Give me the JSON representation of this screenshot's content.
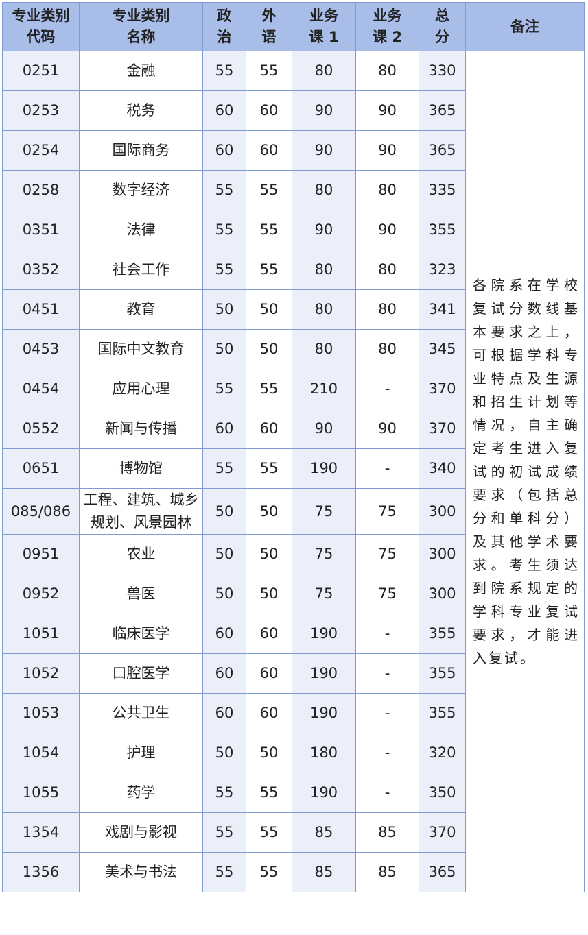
{
  "table": {
    "header": [
      [
        "专业类别",
        "代码"
      ],
      [
        "专业类别",
        "名称"
      ],
      [
        "政",
        "治"
      ],
      [
        "外",
        "语"
      ],
      [
        "业务",
        "课 1"
      ],
      [
        "业务",
        "课 2"
      ],
      [
        "总",
        "分"
      ],
      [
        "备注"
      ]
    ],
    "rows": [
      [
        "0251",
        "金融",
        55,
        55,
        80,
        80,
        330
      ],
      [
        "0253",
        "税务",
        60,
        60,
        90,
        90,
        365
      ],
      [
        "0254",
        "国际商务",
        60,
        60,
        90,
        90,
        365
      ],
      [
        "0258",
        "数字经济",
        55,
        55,
        80,
        80,
        335
      ],
      [
        "0351",
        "法律",
        55,
        55,
        90,
        90,
        355
      ],
      [
        "0352",
        "社会工作",
        55,
        55,
        80,
        80,
        323
      ],
      [
        "0451",
        "教育",
        50,
        50,
        80,
        80,
        341
      ],
      [
        "0453",
        "国际中文教育",
        50,
        50,
        80,
        80,
        345
      ],
      [
        "0454",
        "应用心理",
        55,
        55,
        210,
        "-",
        370
      ],
      [
        "0552",
        "新闻与传播",
        60,
        60,
        90,
        90,
        370
      ],
      [
        "0651",
        "博物馆",
        55,
        55,
        190,
        "-",
        340
      ],
      [
        "085/086",
        "工程、建筑、城乡规划、风景园林",
        50,
        50,
        75,
        75,
        300
      ],
      [
        "0951",
        "农业",
        50,
        50,
        75,
        75,
        300
      ],
      [
        "0952",
        "兽医",
        50,
        50,
        75,
        75,
        300
      ],
      [
        "1051",
        "临床医学",
        60,
        60,
        190,
        "-",
        355
      ],
      [
        "1052",
        "口腔医学",
        60,
        60,
        190,
        "-",
        355
      ],
      [
        "1053",
        "公共卫生",
        60,
        60,
        190,
        "-",
        355
      ],
      [
        "1054",
        "护理",
        50,
        50,
        180,
        "-",
        320
      ],
      [
        "1055",
        "药学",
        55,
        55,
        190,
        "-",
        350
      ],
      [
        "1354",
        "戏剧与影视",
        55,
        55,
        85,
        85,
        370
      ],
      [
        "1356",
        "美术与书法",
        55,
        55,
        85,
        85,
        365
      ]
    ],
    "remark": "各院系在学校复试分数线基本要求之上，可根据学科专业特点及生源和招生计划等情况，自主确定考生进入复试的初试成绩要求（包括总分和单科分）及其他学术要求。考生须达到院系规定的学科专业复试要求，才能进入复试。"
  }
}
